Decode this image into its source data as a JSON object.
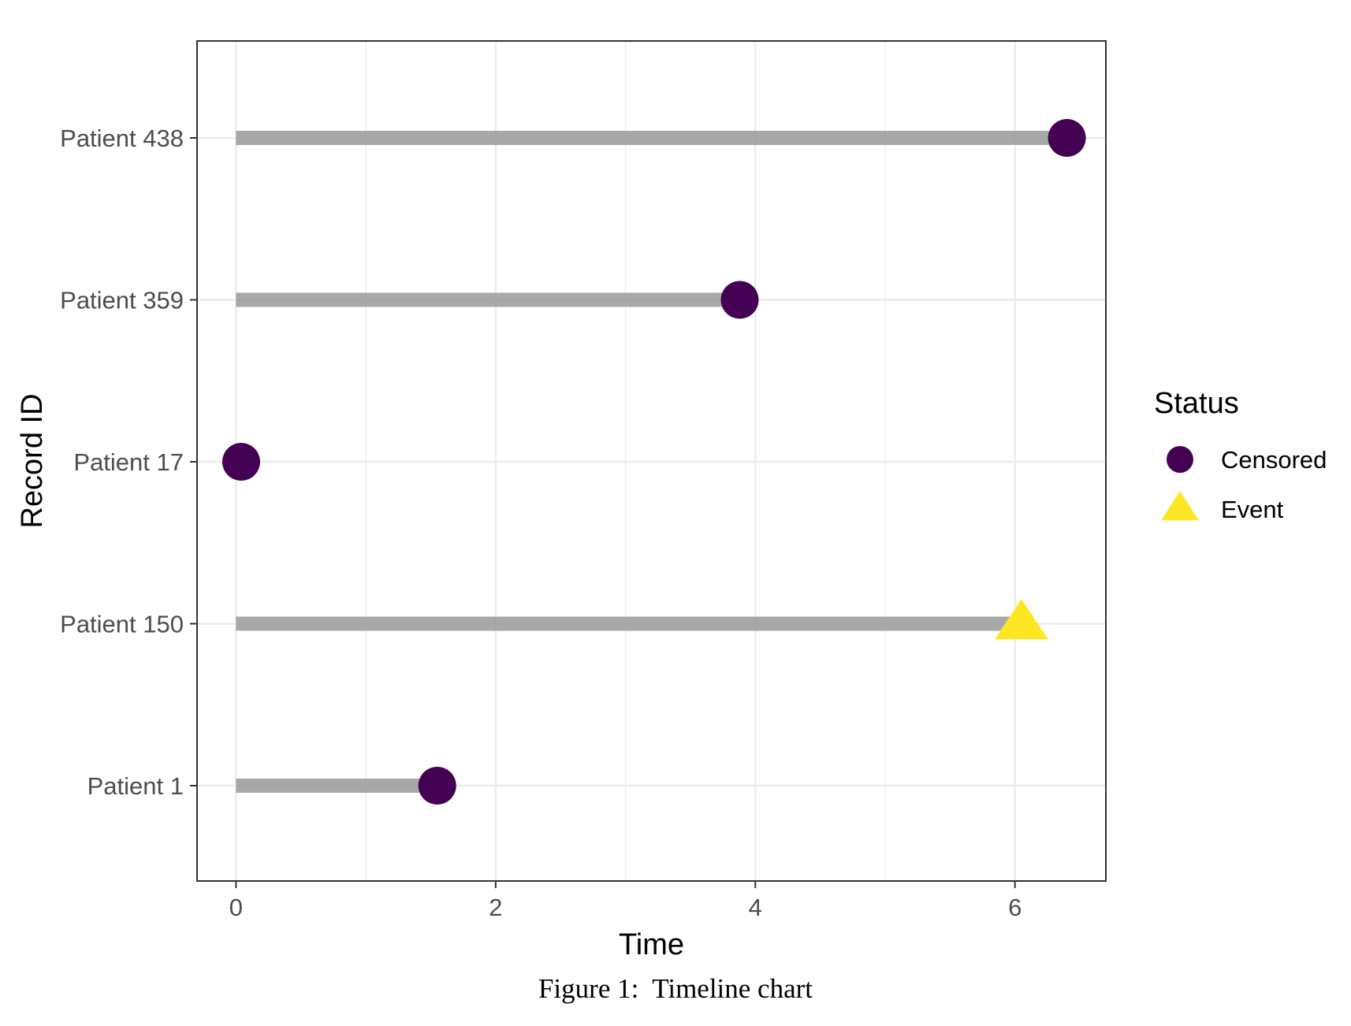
{
  "caption": "Figure 1:  Timeline chart",
  "chart_data": {
    "type": "timeline",
    "xlabel": "Time",
    "ylabel": "Record ID",
    "xlim": [
      -0.3,
      6.7
    ],
    "x_ticks": [
      0,
      2,
      4,
      6
    ],
    "x_minor_ticks": [
      1,
      3,
      5
    ],
    "grid": true,
    "categories": [
      "Patient 1",
      "Patient 150",
      "Patient 17",
      "Patient 359",
      "Patient 438"
    ],
    "records": [
      {
        "id": "Patient 438",
        "end": 6.4,
        "status": "Censored"
      },
      {
        "id": "Patient 359",
        "end": 3.88,
        "status": "Censored"
      },
      {
        "id": "Patient 17",
        "end": 0.04,
        "status": "Censored"
      },
      {
        "id": "Patient 150",
        "end": 6.05,
        "status": "Event"
      },
      {
        "id": "Patient 1",
        "end": 1.55,
        "status": "Censored"
      }
    ],
    "legend": {
      "title": "Status",
      "placement": "right",
      "entries": [
        {
          "label": "Censored",
          "shape": "circle",
          "color": "#440154"
        },
        {
          "label": "Event",
          "shape": "triangle",
          "color": "#FDE725"
        }
      ]
    },
    "segment_color": "#999999"
  }
}
